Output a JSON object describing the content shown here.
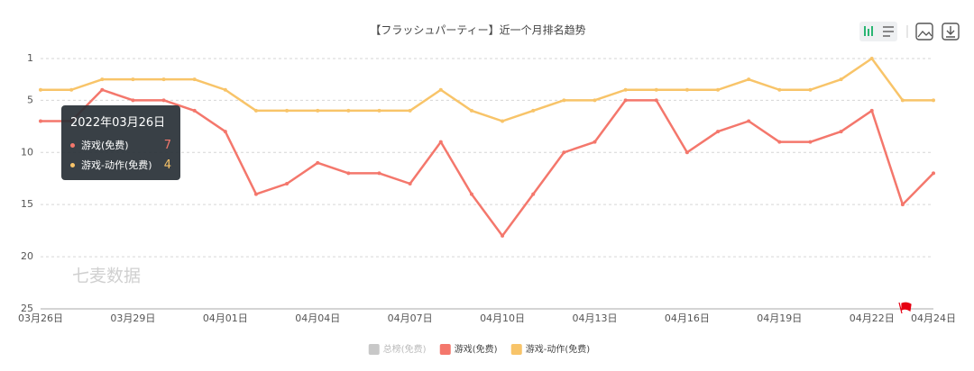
{
  "chart_data": {
    "type": "line",
    "title": "【フラッシュパーティー】近一个月排名趋势",
    "watermark": "七麦数据",
    "categories": [
      "03月26日",
      null,
      null,
      "03月29日",
      null,
      null,
      "04月01日",
      null,
      null,
      "04月04日",
      null,
      null,
      "04月07日",
      null,
      null,
      "04月10日",
      null,
      null,
      "04月13日",
      null,
      null,
      "04月16日",
      null,
      null,
      "04月19日",
      null,
      null,
      "04月22日",
      null,
      "04月24日"
    ],
    "series": [
      {
        "name": "总榜(免费)",
        "color": "#c8c8c8",
        "hidden": true,
        "values": [
          null,
          null,
          null,
          null,
          null,
          null,
          null,
          null,
          null,
          null,
          null,
          null,
          null,
          null,
          null,
          null,
          null,
          null,
          null,
          null,
          null,
          null,
          null,
          null,
          null,
          null,
          null,
          null,
          null,
          null
        ]
      },
      {
        "name": "游戏(免费)",
        "color": "#f4776c",
        "values": [
          7,
          7,
          4,
          5,
          5,
          6,
          8,
          14,
          13,
          11,
          12,
          12,
          13,
          9,
          14,
          18,
          14,
          10,
          9,
          5,
          5,
          10,
          8,
          7,
          9,
          9,
          8,
          6,
          15,
          12
        ]
      },
      {
        "name": "游戏-动作(免费)",
        "color": "#f8c469",
        "values": [
          4,
          4,
          3,
          3,
          3,
          3,
          4,
          6,
          6,
          6,
          6,
          6,
          6,
          4,
          6,
          7,
          6,
          5,
          5,
          4,
          4,
          4,
          4,
          3,
          4,
          4,
          3,
          1,
          5,
          5
        ]
      }
    ],
    "ylim": [
      1,
      25
    ],
    "y_inverted": true,
    "yticks": [
      1,
      5,
      10,
      15,
      20,
      25
    ],
    "grid": true,
    "legend": "bottom",
    "tooltip": {
      "title": "2022年03月26日",
      "items": [
        {
          "name": "游戏(免费)",
          "value": 7
        },
        {
          "name": "游戏-动作(免费)",
          "value": 4
        }
      ]
    }
  }
}
